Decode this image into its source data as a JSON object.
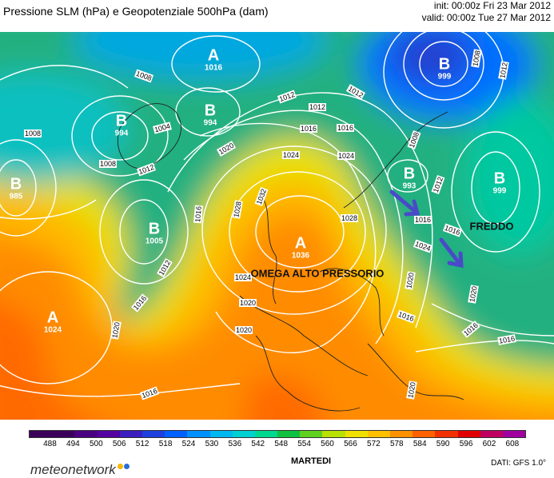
{
  "header": {
    "title": "Pressione SLM (hPa) e Geopotenziale 500hPa (dam)",
    "init": "init: 00:00z Fri 23 Mar 2012",
    "valid": "valid: 00:00z Tue 27 Mar 2012"
  },
  "map": {
    "pressure_centers": [
      {
        "letter": "B",
        "value": "985"
      },
      {
        "letter": "B",
        "value": "994"
      },
      {
        "letter": "A",
        "value": "1016"
      },
      {
        "letter": "B",
        "value": "994"
      },
      {
        "letter": "B",
        "value": "1005"
      },
      {
        "letter": "A",
        "value": "1024"
      },
      {
        "letter": "A",
        "value": "1036"
      },
      {
        "letter": "B",
        "value": "999"
      },
      {
        "letter": "B",
        "value": "993"
      },
      {
        "letter": "B",
        "value": "999"
      }
    ],
    "isobar_labels": [
      "1008",
      "1004",
      "1008",
      "1012",
      "1016",
      "1020",
      "1024",
      "1028",
      "1032",
      "1008",
      "1012",
      "1016",
      "1020",
      "1024",
      "1028",
      "1016",
      "1012",
      "1016",
      "1020",
      "1024",
      "1016",
      "1020",
      "1016",
      "1008",
      "1012",
      "1016",
      "1012",
      "1024",
      "1020",
      "1016",
      "1012",
      "1008",
      "1012",
      "1016",
      "1020",
      "1020",
      "1016"
    ],
    "annotations": {
      "main": "OMEGA ALTO PRESSORIO",
      "cold": "FREDDO"
    },
    "arrow_color": "#4a4ac8"
  },
  "scale": {
    "values": [
      "488",
      "494",
      "500",
      "506",
      "512",
      "518",
      "524",
      "530",
      "536",
      "542",
      "548",
      "554",
      "560",
      "566",
      "572",
      "578",
      "584",
      "590",
      "596",
      "602",
      "608"
    ],
    "colors": [
      "#3a005a",
      "#4b0082",
      "#5500a0",
      "#3b1fbf",
      "#1f3fdf",
      "#0060ff",
      "#0090ff",
      "#00b8f0",
      "#00d0d0",
      "#00d890",
      "#10c040",
      "#60d020",
      "#b8e000",
      "#f0e000",
      "#ffc000",
      "#ff9000",
      "#ff6000",
      "#f03000",
      "#e00000",
      "#c00060",
      "#a000a0"
    ]
  },
  "footer": {
    "day": "MARTEDI",
    "logo": "meteonetwork",
    "credit": "DATI: GFS 1.0°"
  }
}
